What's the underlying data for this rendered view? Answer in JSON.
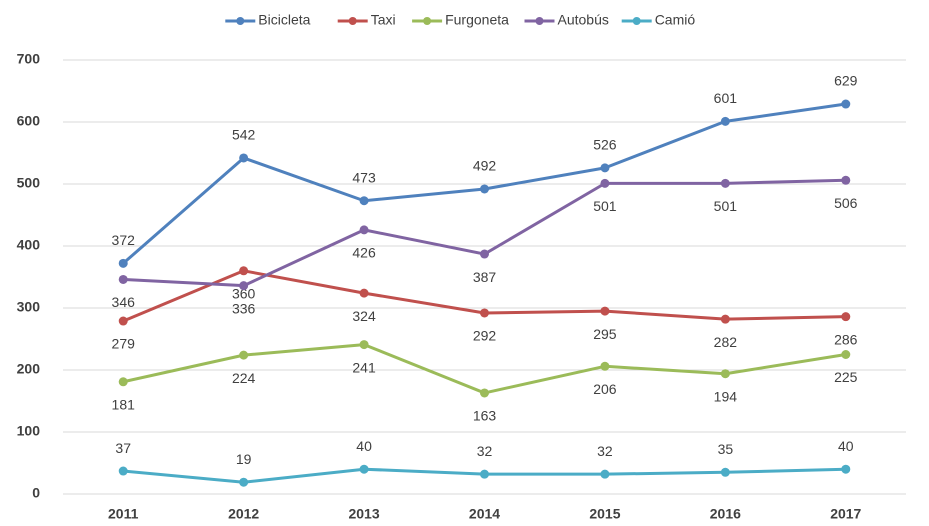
{
  "chart_data": {
    "type": "line",
    "categories": [
      "2011",
      "2012",
      "2013",
      "2014",
      "2015",
      "2016",
      "2017"
    ],
    "series": [
      {
        "name": "Bicicleta",
        "color": "#4f81bd",
        "values": [
          372,
          542,
          473,
          492,
          526,
          601,
          629
        ]
      },
      {
        "name": "Taxi",
        "color": "#c0504d",
        "values": [
          279,
          360,
          324,
          292,
          295,
          282,
          286
        ]
      },
      {
        "name": "Furgoneta",
        "color": "#9bbb59",
        "values": [
          181,
          224,
          241,
          163,
          206,
          194,
          225
        ]
      },
      {
        "name": "Autobús",
        "color": "#8064a2",
        "values": [
          346,
          336,
          426,
          387,
          501,
          501,
          506
        ]
      },
      {
        "name": "Camió",
        "color": "#4bacc6",
        "values": [
          37,
          19,
          40,
          32,
          32,
          35,
          40
        ]
      }
    ],
    "ylim": [
      0,
      700
    ],
    "yticks": [
      0,
      100,
      200,
      300,
      400,
      500,
      600,
      700
    ],
    "grid": true,
    "legend": "top"
  }
}
